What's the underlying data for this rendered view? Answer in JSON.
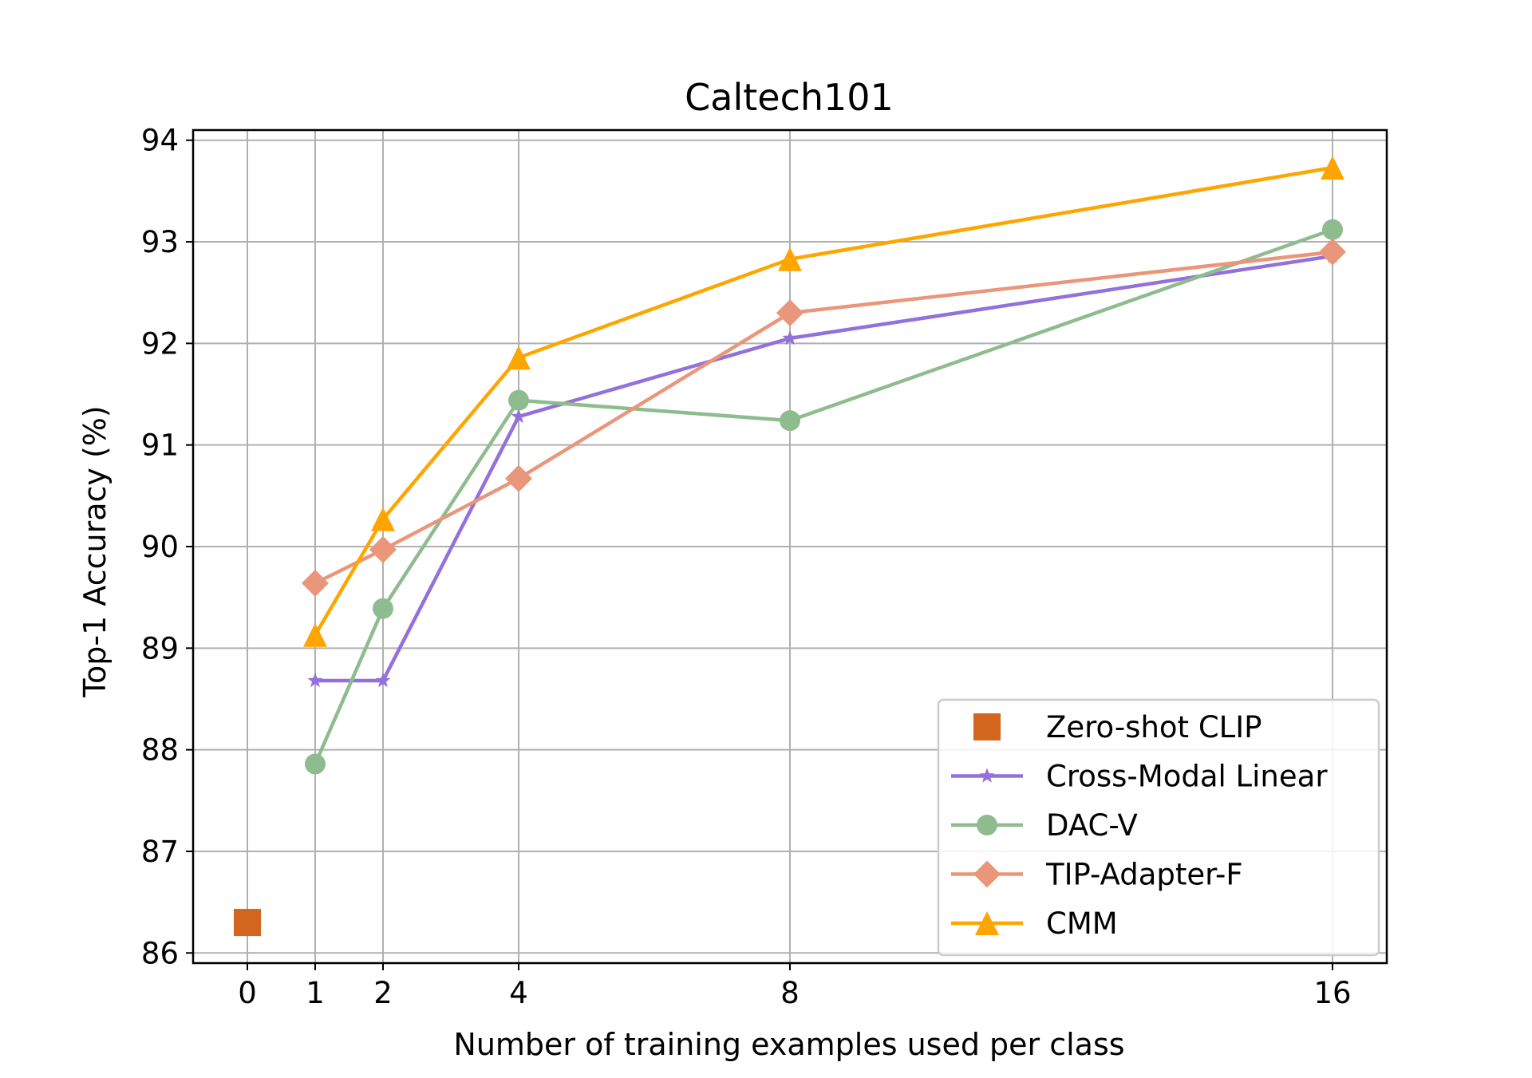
{
  "chart_data": {
    "type": "line",
    "title": "Caltech101",
    "xlabel": "Number of training examples used per class",
    "ylabel": "Top-1 Accuracy (%)",
    "xlim": [
      -0.8,
      16.8
    ],
    "ylim": [
      85.9,
      94.1
    ],
    "xticks": [
      0,
      1,
      2,
      4,
      8,
      16
    ],
    "yticks": [
      86,
      87,
      88,
      89,
      90,
      91,
      92,
      93,
      94
    ],
    "grid": true,
    "legend_position": "lower-right",
    "series": [
      {
        "name": "Zero-shot CLIP",
        "marker": "square",
        "color": "#d2661e",
        "line": false,
        "x": [
          0
        ],
        "y": [
          86.3
        ]
      },
      {
        "name": "Cross-Modal Linear",
        "marker": "star",
        "color": "#9370db",
        "line": true,
        "x": [
          1,
          2,
          4,
          8,
          16
        ],
        "y": [
          88.68,
          88.68,
          91.28,
          92.05,
          92.86
        ]
      },
      {
        "name": "DAC-V",
        "marker": "circle",
        "color": "#8fbc8f",
        "line": true,
        "x": [
          1,
          2,
          4,
          8,
          16
        ],
        "y": [
          87.86,
          89.39,
          91.44,
          91.24,
          93.12
        ]
      },
      {
        "name": "TIP-Adapter-F",
        "marker": "diamond",
        "color": "#e9967a",
        "line": true,
        "x": [
          1,
          2,
          4,
          8,
          16
        ],
        "y": [
          89.64,
          89.97,
          90.67,
          92.3,
          92.9
        ]
      },
      {
        "name": "CMM",
        "marker": "triangle",
        "color": "#ffa500",
        "line": true,
        "x": [
          1,
          2,
          4,
          8,
          16
        ],
        "y": [
          89.13,
          90.27,
          91.86,
          92.83,
          93.73
        ]
      }
    ]
  }
}
